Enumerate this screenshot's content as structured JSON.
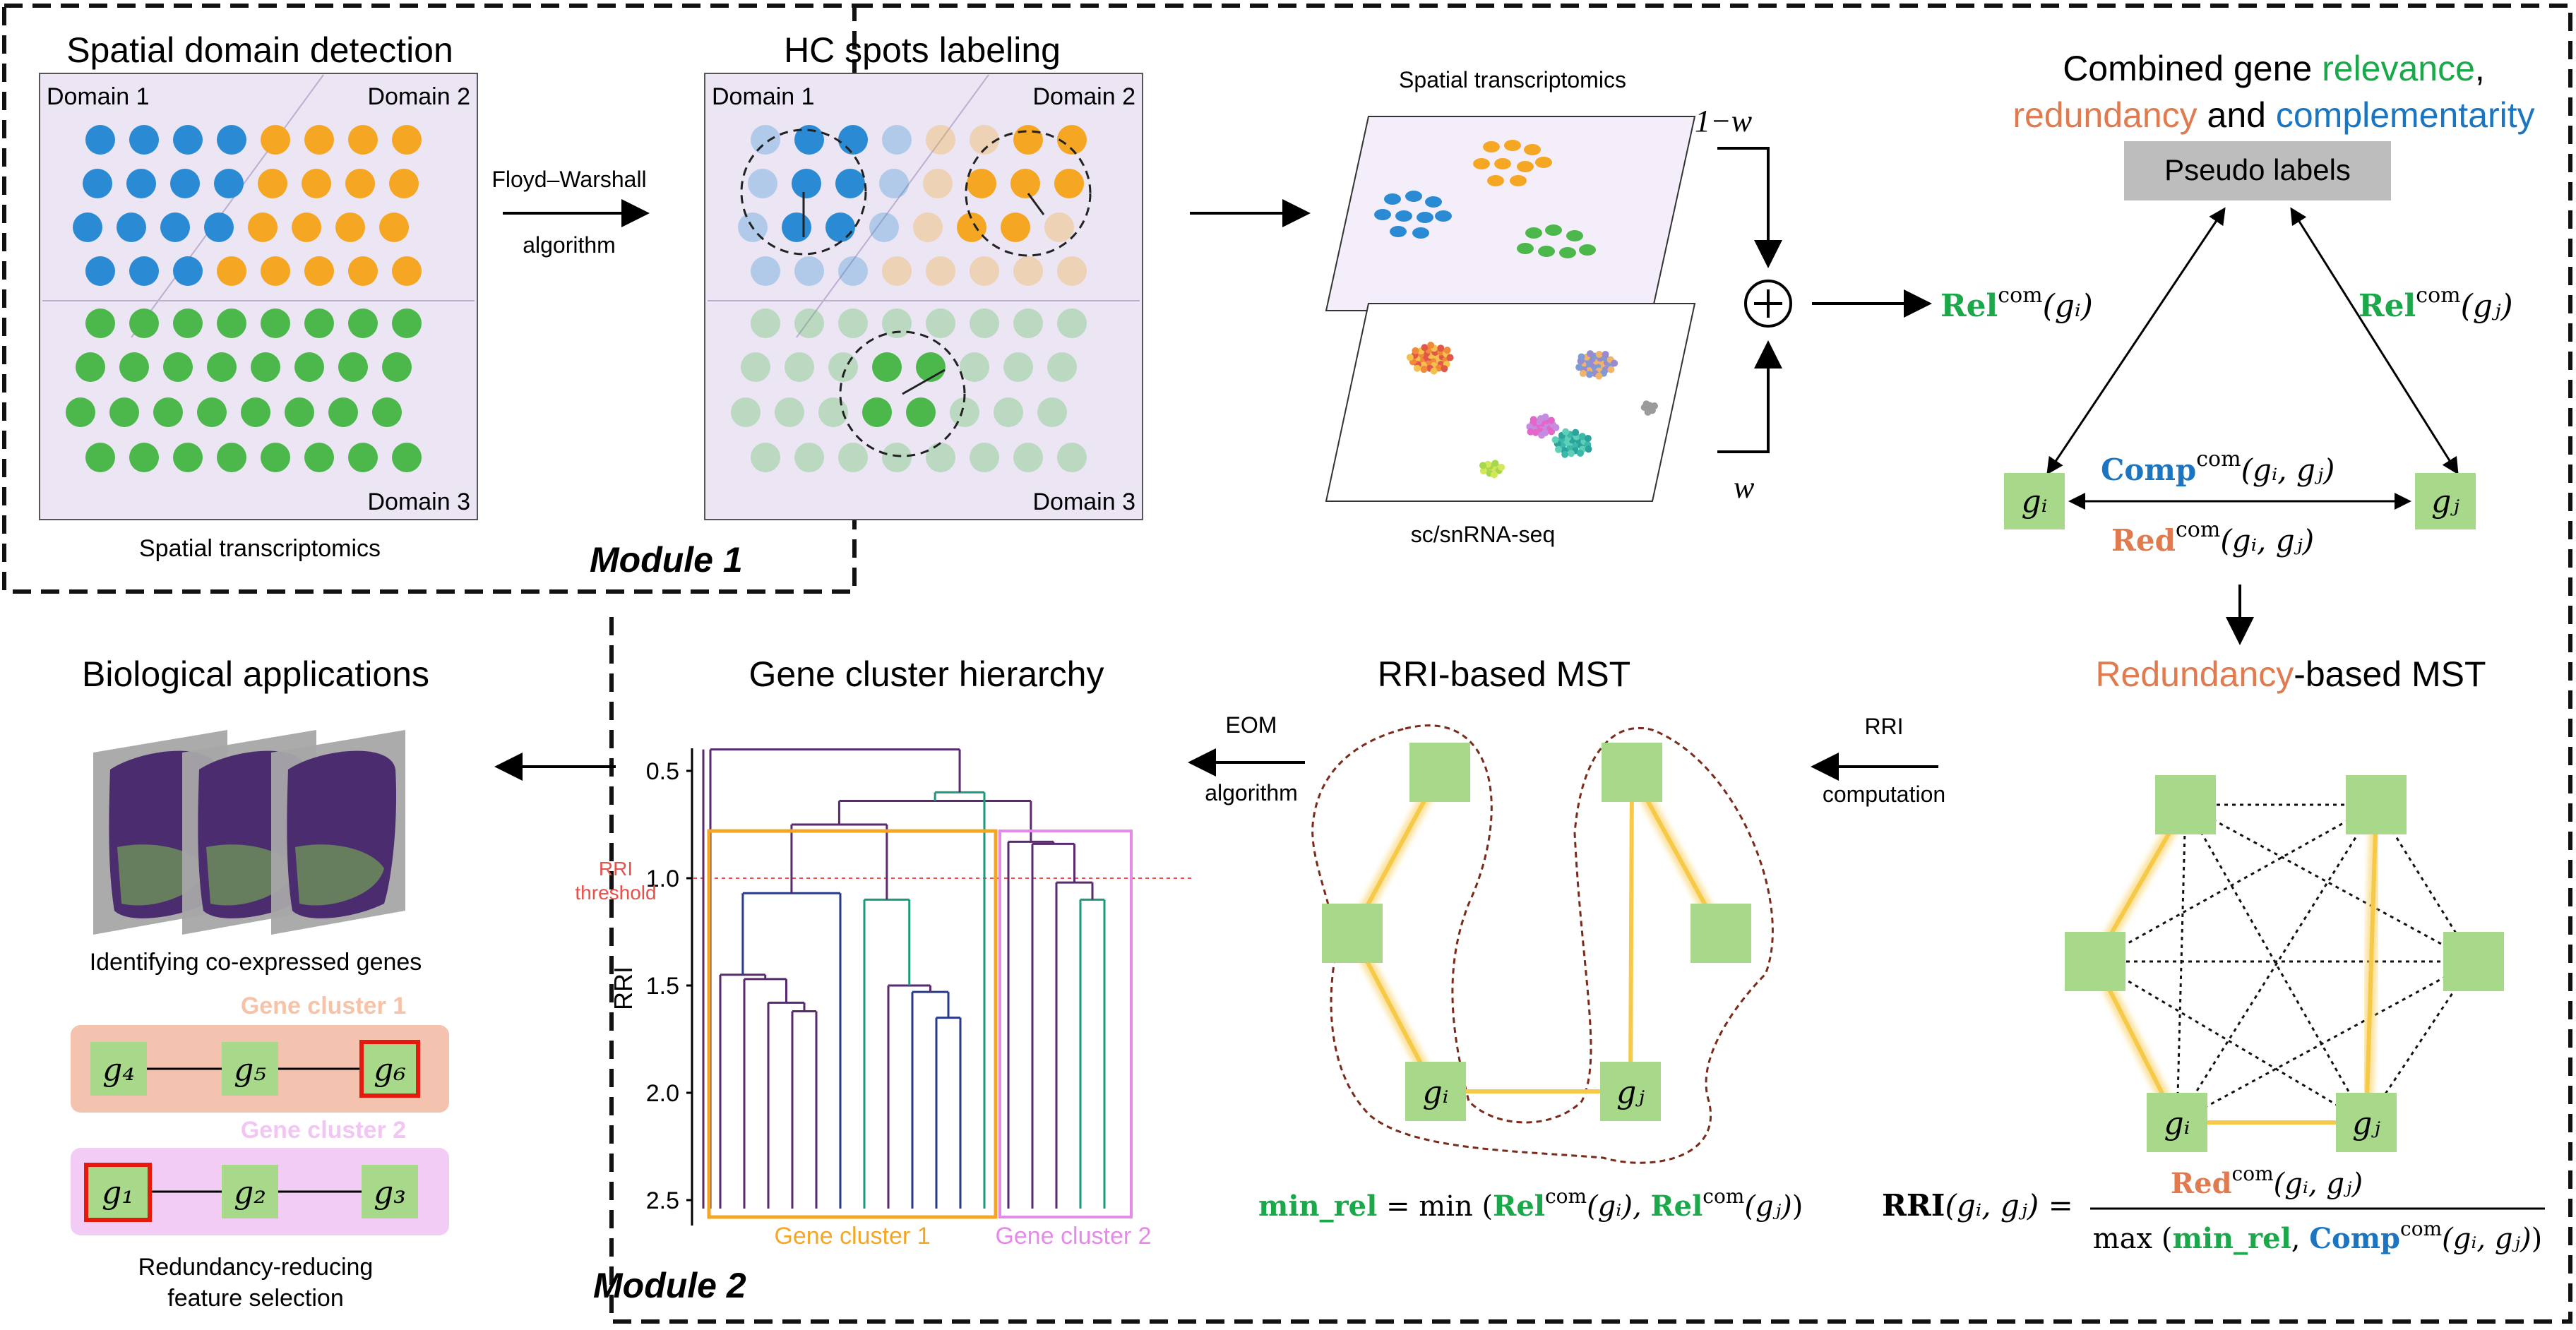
{
  "module1": {
    "label": "Module 1",
    "spatial_detection": {
      "title": "Spatial domain detection",
      "domain1": "Domain 1",
      "domain2": "Domain 2",
      "domain3": "Domain 3",
      "caption": "Spatial transcriptomics"
    },
    "arrow_label_line1": "Floyd–Warshall",
    "arrow_label_line2": "algorithm",
    "hc_labeling": {
      "title": "HC spots labeling",
      "domain1": "Domain 1",
      "domain2": "Domain 2",
      "domain3": "Domain 3"
    },
    "planes": {
      "top_label": "Spatial transcriptomics",
      "bottom_label": "sc/snRNA-seq",
      "weight_top": "1−w",
      "weight_bottom": "w"
    },
    "combined": {
      "title_prefix": "Combined gene ",
      "relevance": "relevance",
      "comma": ",",
      "redundancy": "redundancy",
      "and": " and ",
      "complementarity": "complementarity",
      "pseudo_labels": "Pseudo labels",
      "rel_left": "Rel",
      "rel_left_sup": "com",
      "rel_left_arg": "(gᵢ)",
      "rel_right": "Rel",
      "rel_right_sup": "com",
      "rel_right_arg": "(gⱼ)",
      "comp": "Comp",
      "comp_sup": "com",
      "comp_arg": "(gᵢ, gⱼ)",
      "red": "Red",
      "red_sup": "com",
      "red_arg": "(gᵢ, gⱼ)",
      "gi": "gᵢ",
      "gj": "gⱼ"
    }
  },
  "module2": {
    "label": "Module 2",
    "redundancy_mst": {
      "title_colored": "Redundancy",
      "title_rest": "-based MST",
      "gi": "gᵢ",
      "gj": "gⱼ",
      "rri_formula_lhs": "RRI",
      "rri_formula_args": "(gᵢ, gⱼ) =",
      "numerator_red": "Red",
      "numerator_sup": "com",
      "numerator_arg": "(gᵢ, gⱼ)",
      "denominator_max": "max",
      "denominator_minrel": "min_rel",
      "denominator_comma": ", ",
      "denominator_comp": "Comp",
      "denominator_sup": "com",
      "denominator_arg": "(gᵢ, gⱼ)"
    },
    "rri_arrow_line1": "RRI",
    "rri_arrow_line2": "computation",
    "rri_mst": {
      "title": "RRI-based MST",
      "gi": "gᵢ",
      "gj": "gⱼ",
      "minrel_lhs": "min_rel",
      "minrel_eq": " = min",
      "rel1": "Rel",
      "rel1_sup": "com",
      "rel1_arg": "(gᵢ),",
      "rel2": "Rel",
      "rel2_sup": "com",
      "rel2_arg": "(gⱼ)"
    },
    "eom_line1": "EOM",
    "eom_line2": "algorithm",
    "hierarchy": {
      "title": "Gene cluster hierarchy",
      "axis_label": "RRI",
      "ticks": [
        "0.5",
        "1.0",
        "1.5",
        "2.0",
        "2.5"
      ],
      "threshold_line1": "RRI",
      "threshold_line2": "threshold",
      "cluster1": "Gene cluster 1",
      "cluster2": "Gene cluster 2"
    },
    "bio": {
      "title": "Biological applications",
      "caption1": "Identifying co-expressed genes",
      "cluster1_label": "Gene cluster 1",
      "cluster2_label": "Gene cluster 2",
      "g4": "g₄",
      "g5": "g₅",
      "g6": "g₆",
      "g1": "g₁",
      "g2": "g₂",
      "g3": "g₃",
      "caption2_line1": "Redundancy-reducing",
      "caption2_line2": "feature selection"
    }
  },
  "colors": {
    "domain_blue": "#2a8bd4",
    "domain_orange": "#f5a623",
    "domain_green": "#4cb84c",
    "panel_lavender": "#ece6f5",
    "gene_green": "#a8d98a",
    "relevance_green": "#1aa84a",
    "redundancy_orange": "#e07a4f",
    "complementarity_blue": "#1b75c0",
    "mst_yellow": "#f7c948",
    "cluster1_orange": "#f5a623",
    "cluster2_pink": "#e58ae8",
    "threshold_red": "#e8504a",
    "dendro_purple": "#5a2a6e",
    "dendro_teal": "#1a9a7a",
    "dendro_navy": "#2a3a8a"
  }
}
